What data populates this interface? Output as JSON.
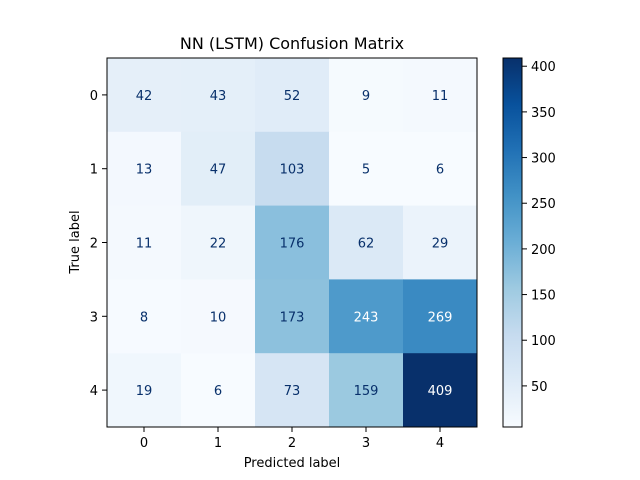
{
  "chart_data": {
    "type": "heatmap",
    "title": "NN (LSTM) Confusion Matrix",
    "xlabel": "Predicted label",
    "ylabel": "True label",
    "x_categories": [
      "0",
      "1",
      "2",
      "3",
      "4"
    ],
    "y_categories": [
      "0",
      "1",
      "2",
      "3",
      "4"
    ],
    "values": [
      [
        42,
        43,
        52,
        9,
        11
      ],
      [
        13,
        47,
        103,
        5,
        6
      ],
      [
        11,
        22,
        176,
        62,
        29
      ],
      [
        8,
        10,
        173,
        243,
        269
      ],
      [
        19,
        6,
        73,
        159,
        409
      ]
    ],
    "colormap": "Blues",
    "colorbar": {
      "vmin": 5,
      "vmax": 409,
      "ticks": [
        50,
        100,
        150,
        200,
        250,
        300,
        350,
        400
      ]
    },
    "colors": {
      "text_light": "#ffffff",
      "text_dark": "#08306b"
    },
    "grid": false
  }
}
